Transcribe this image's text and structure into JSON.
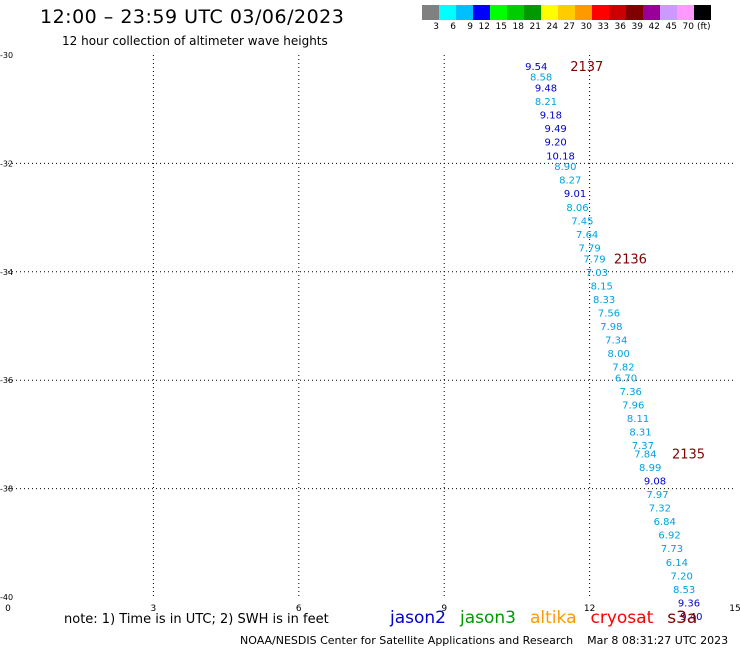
{
  "header": {
    "title": "12:00 – 23:59 UTC 03/06/2023",
    "subtitle": "12 hour collection of altimeter wave heights"
  },
  "scale_legend": {
    "colors": [
      "#808080",
      "#00ffff",
      "#00bfff",
      "#0000ff",
      "#00ff00",
      "#00cc00",
      "#009900",
      "#ffff00",
      "#ffcc00",
      "#ff9900",
      "#ff0000",
      "#cc0000",
      "#800000",
      "#990099",
      "#cc99ff",
      "#ff99ff",
      "#000000"
    ],
    "labels": [
      "3",
      "6",
      "9",
      "12",
      "15",
      "18",
      "21",
      "24",
      "27",
      "30",
      "33",
      "36",
      "39",
      "42",
      "45",
      "70"
    ],
    "unit": "(ft)"
  },
  "chart_data": {
    "type": "scatter",
    "xlim": [
      0,
      15
    ],
    "ylim": [
      -40,
      -30
    ],
    "x_ticks": [
      "0",
      "3",
      "6",
      "9",
      "12",
      "15"
    ],
    "y_ticks": [
      "-30",
      "-32",
      "-34",
      "-36",
      "-38",
      "-40"
    ],
    "grid": true,
    "points": [
      {
        "x": 10.9,
        "y": -30.2,
        "v": "9.54",
        "c": "#0000cc"
      },
      {
        "x": 11.0,
        "y": -30.4,
        "v": "8.58",
        "c": "#00a0e0"
      },
      {
        "x": 11.1,
        "y": -30.6,
        "v": "9.48",
        "c": "#0000cc"
      },
      {
        "x": 11.1,
        "y": -30.85,
        "v": "8.21",
        "c": "#00a0e0"
      },
      {
        "x": 11.2,
        "y": -31.1,
        "v": "9.18",
        "c": "#0000cc"
      },
      {
        "x": 11.3,
        "y": -31.35,
        "v": "9.49",
        "c": "#0000cc"
      },
      {
        "x": 11.3,
        "y": -31.6,
        "v": "9.20",
        "c": "#0000cc"
      },
      {
        "x": 11.4,
        "y": -31.85,
        "v": "10.18",
        "c": "#0000cc"
      },
      {
        "x": 11.5,
        "y": -32.05,
        "v": "8.90",
        "c": "#00a0e0"
      },
      {
        "x": 11.6,
        "y": -32.3,
        "v": "8.27",
        "c": "#00a0e0"
      },
      {
        "x": 11.7,
        "y": -32.55,
        "v": "9.01",
        "c": "#0000cc"
      },
      {
        "x": 11.75,
        "y": -32.8,
        "v": "8.06",
        "c": "#00a0e0"
      },
      {
        "x": 11.85,
        "y": -33.05,
        "v": "7.45",
        "c": "#00a0e0"
      },
      {
        "x": 11.95,
        "y": -33.3,
        "v": "7.64",
        "c": "#00a0e0"
      },
      {
        "x": 12.0,
        "y": -33.55,
        "v": "7.79",
        "c": "#00a0e0"
      },
      {
        "x": 12.1,
        "y": -33.75,
        "v": "7.79",
        "c": "#00a0e0"
      },
      {
        "x": 12.15,
        "y": -34.0,
        "v": "7.03",
        "c": "#00a0e0"
      },
      {
        "x": 12.25,
        "y": -34.25,
        "v": "8.15",
        "c": "#00a0e0"
      },
      {
        "x": 12.3,
        "y": -34.5,
        "v": "8.33",
        "c": "#00a0e0"
      },
      {
        "x": 12.4,
        "y": -34.75,
        "v": "7.56",
        "c": "#00a0e0"
      },
      {
        "x": 12.45,
        "y": -35.0,
        "v": "7.98",
        "c": "#00a0e0"
      },
      {
        "x": 12.55,
        "y": -35.25,
        "v": "7.34",
        "c": "#00a0e0"
      },
      {
        "x": 12.6,
        "y": -35.5,
        "v": "8.00",
        "c": "#00a0e0"
      },
      {
        "x": 12.7,
        "y": -35.75,
        "v": "7.82",
        "c": "#00a0e0"
      },
      {
        "x": 12.75,
        "y": -35.95,
        "v": "6.70",
        "c": "#00a0e0"
      },
      {
        "x": 12.85,
        "y": -36.2,
        "v": "7.36",
        "c": "#00a0e0"
      },
      {
        "x": 12.9,
        "y": -36.45,
        "v": "7.96",
        "c": "#00a0e0"
      },
      {
        "x": 13.0,
        "y": -36.7,
        "v": "8.11",
        "c": "#00a0e0"
      },
      {
        "x": 13.05,
        "y": -36.95,
        "v": "8.31",
        "c": "#00a0e0"
      },
      {
        "x": 13.1,
        "y": -37.2,
        "v": "7.37",
        "c": "#00a0e0"
      },
      {
        "x": 13.15,
        "y": -37.35,
        "v": "7.84",
        "c": "#00a0e0"
      },
      {
        "x": 13.25,
        "y": -37.6,
        "v": "8.99",
        "c": "#00a0e0"
      },
      {
        "x": 13.35,
        "y": -37.85,
        "v": "9.08",
        "c": "#0000cc"
      },
      {
        "x": 13.4,
        "y": -38.1,
        "v": "7.97",
        "c": "#00a0e0"
      },
      {
        "x": 13.45,
        "y": -38.35,
        "v": "7.32",
        "c": "#00a0e0"
      },
      {
        "x": 13.55,
        "y": -38.6,
        "v": "6.84",
        "c": "#00a0e0"
      },
      {
        "x": 13.65,
        "y": -38.85,
        "v": "6.92",
        "c": "#00a0e0"
      },
      {
        "x": 13.7,
        "y": -39.1,
        "v": "7.73",
        "c": "#00a0e0"
      },
      {
        "x": 13.8,
        "y": -39.35,
        "v": "6.14",
        "c": "#00a0e0"
      },
      {
        "x": 13.9,
        "y": -39.6,
        "v": "7.20",
        "c": "#00a0e0"
      },
      {
        "x": 13.95,
        "y": -39.85,
        "v": "8.53",
        "c": "#00a0e0"
      },
      {
        "x": 14.05,
        "y": -40.1,
        "v": "9.36",
        "c": "#0000cc"
      },
      {
        "x": 14.1,
        "y": -40.35,
        "v": "9.40",
        "c": "#0000cc"
      }
    ],
    "annotations": [
      {
        "text": "2137",
        "x": 11.6,
        "y": -30.2
      },
      {
        "text": "2136",
        "x": 12.5,
        "y": -33.75
      },
      {
        "text": "2135",
        "x": 13.7,
        "y": -37.35
      }
    ]
  },
  "footer": {
    "note": "note:  1) Time is in UTC;  2) SWH is in feet",
    "satellites": [
      {
        "name": "jason2",
        "color": "#0000cc"
      },
      {
        "name": "jason3",
        "color": "#009900"
      },
      {
        "name": "altika",
        "color": "#ff9900"
      },
      {
        "name": "cryosat",
        "color": "#ff0000"
      },
      {
        "name": "s3a",
        "color": "#800000"
      }
    ],
    "credit": "NOAA/NESDIS Center for Satellite Applications and Research",
    "timestamp": "Mar  8 08:31:27 UTC 2023"
  },
  "colors": {
    "annotation": "#800000",
    "grid": "#000000"
  }
}
